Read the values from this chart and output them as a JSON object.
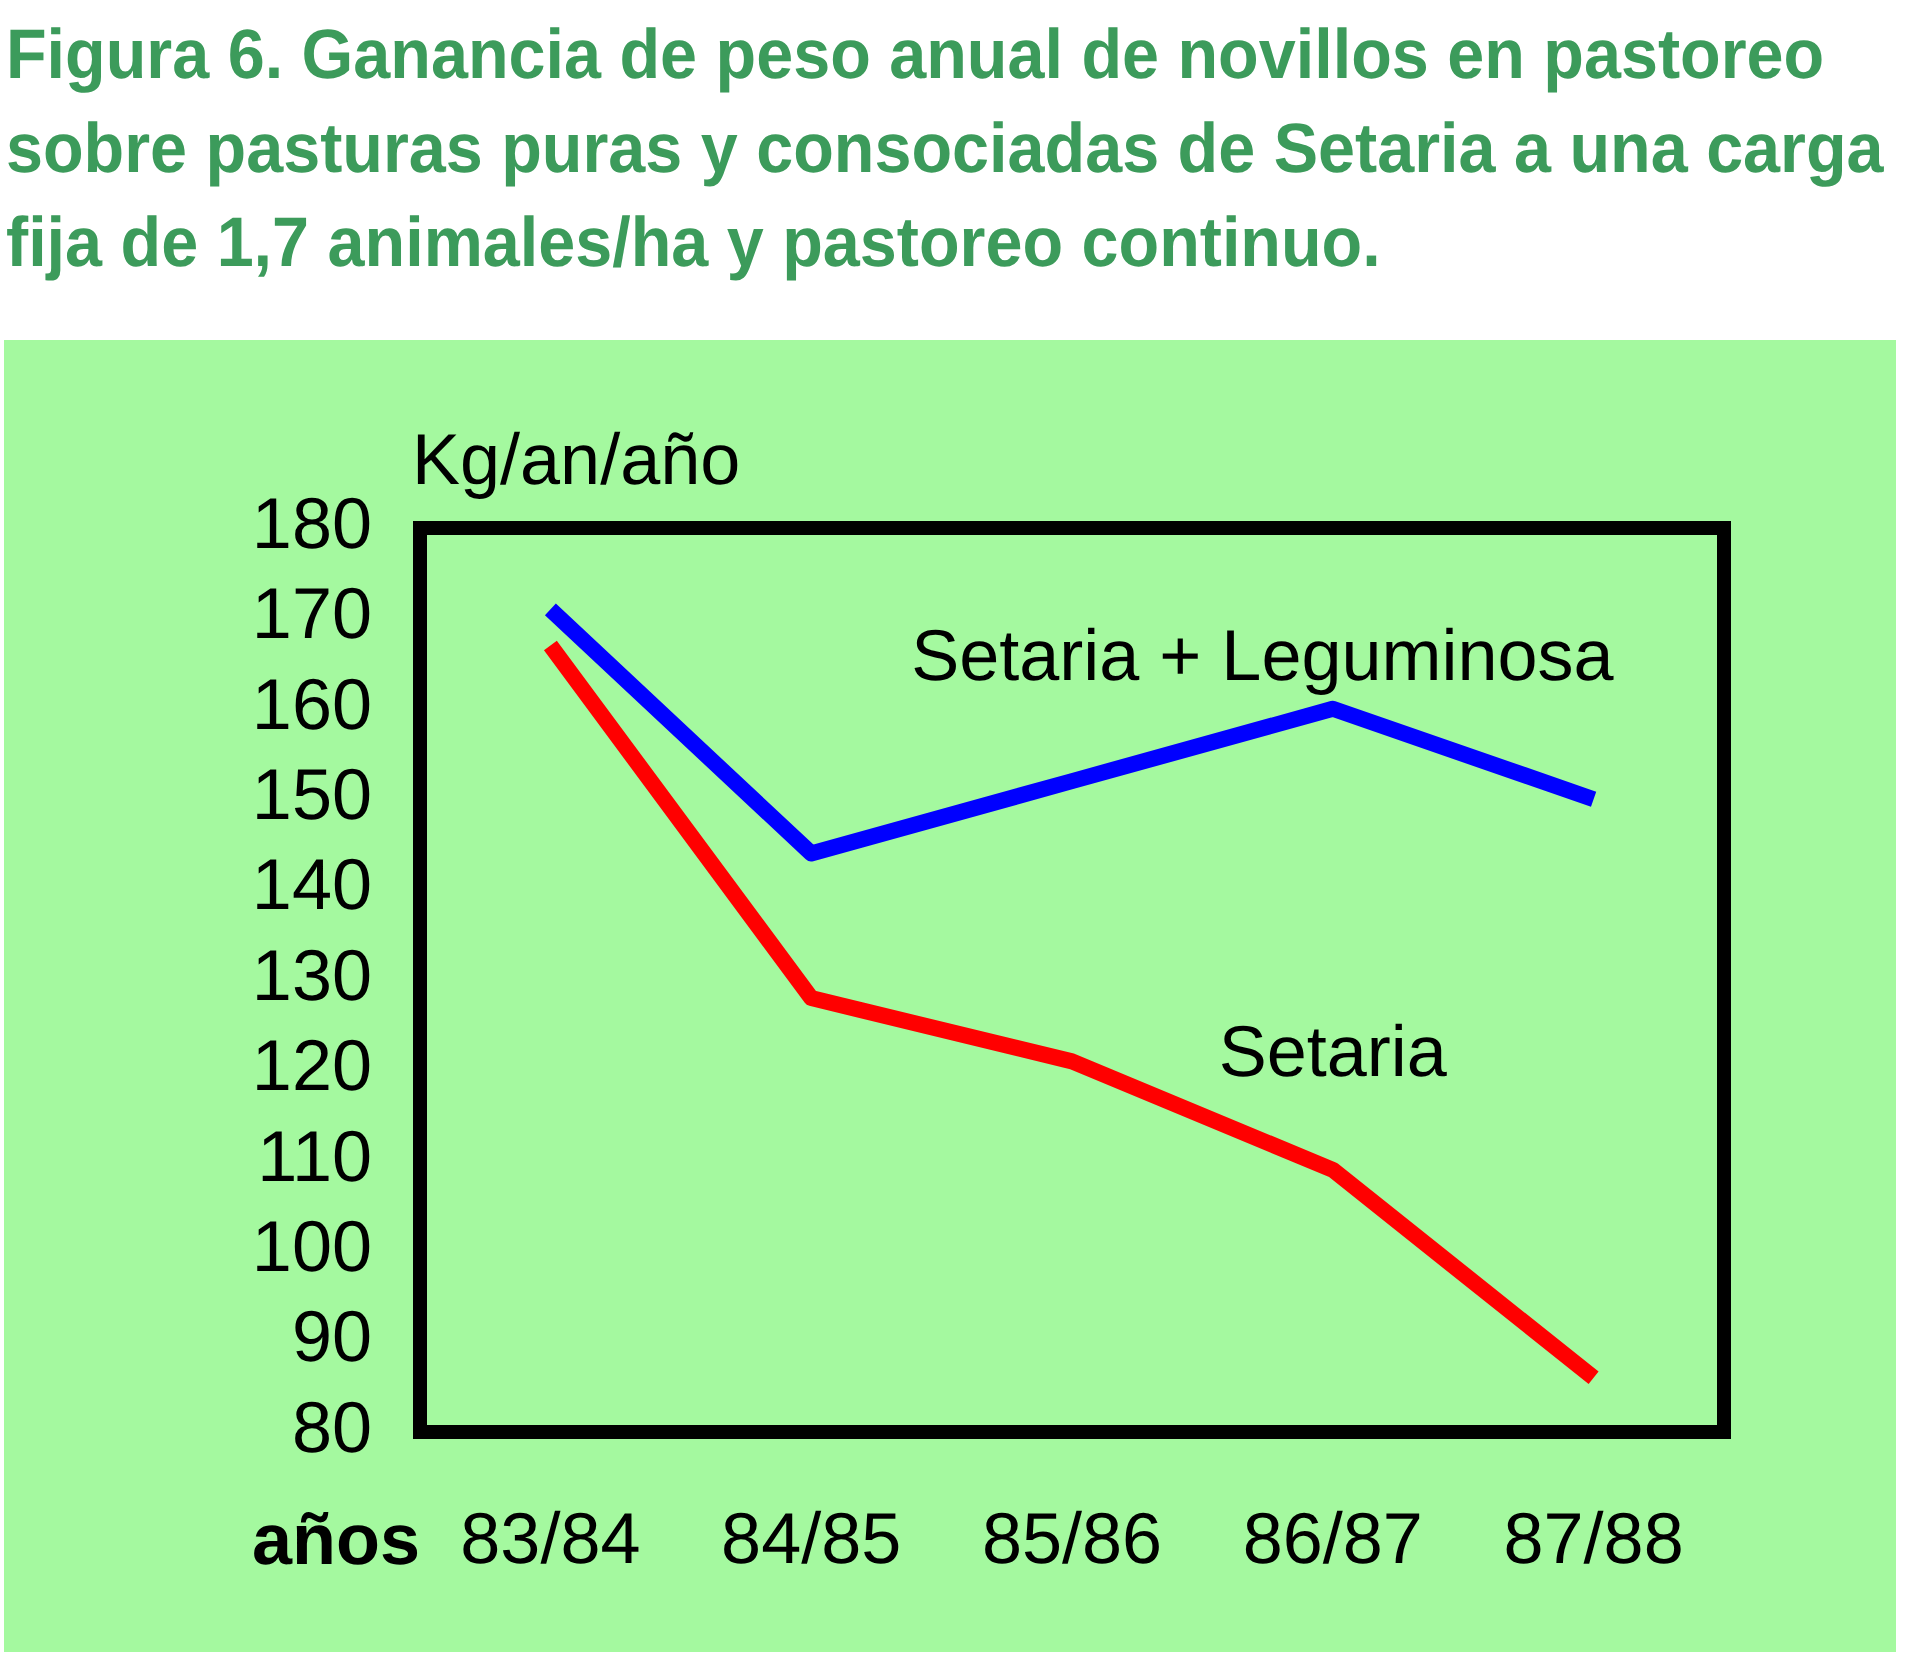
{
  "chart_data": {
    "type": "line",
    "title": "Figura 6. Ganancia de peso anual de novillos en pastoreo sobre pasturas puras y consociadas de Setaria a una carga fija de 1,7 animales/ha y pastoreo continuo.",
    "ylabel": "Kg/an/año",
    "xlabel": "años",
    "categories": [
      "83/84",
      "84/85",
      "85/86",
      "86/87",
      "87/88"
    ],
    "series": [
      {
        "name": "Setaria + Leguminosa",
        "color": "#0000ff",
        "values": [
          171,
          144,
          152,
          160,
          150
        ]
      },
      {
        "name": "Setaria",
        "color": "#ff0000",
        "values": [
          167,
          128,
          121,
          109,
          86
        ]
      }
    ],
    "ylim": [
      80,
      180
    ],
    "yticks": [
      80,
      90,
      100,
      110,
      120,
      130,
      140,
      150,
      160,
      170,
      180
    ],
    "grid": false,
    "legend": false,
    "marker": "none",
    "line_style": "solid"
  }
}
